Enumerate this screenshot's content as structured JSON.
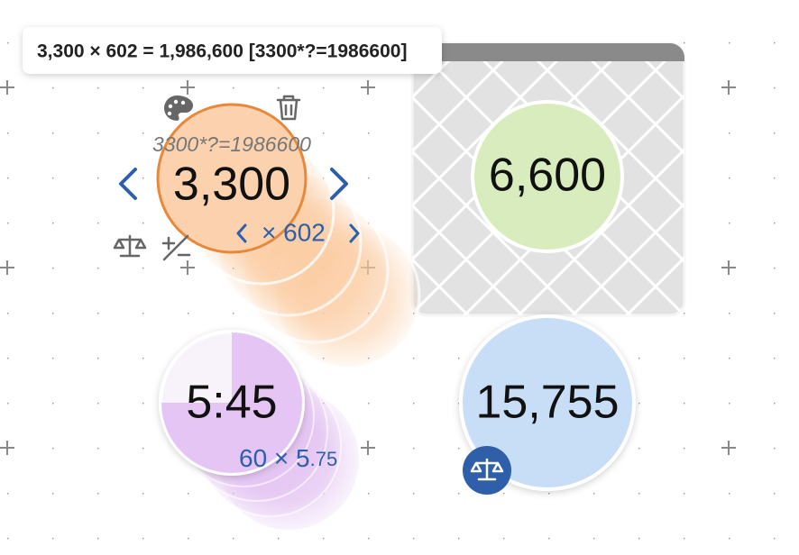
{
  "tooltip": "3,300 × 602 = 1,986,600 [3300*?=1986600]",
  "nodes": [
    {
      "formula": "3300*?=1986600",
      "value": "3,300",
      "step": "× 602"
    },
    {
      "value": "6,600"
    },
    {
      "value": "5:45",
      "step": "60 × 5",
      "step_fraction": ".75"
    },
    {
      "value": "15,755"
    }
  ]
}
